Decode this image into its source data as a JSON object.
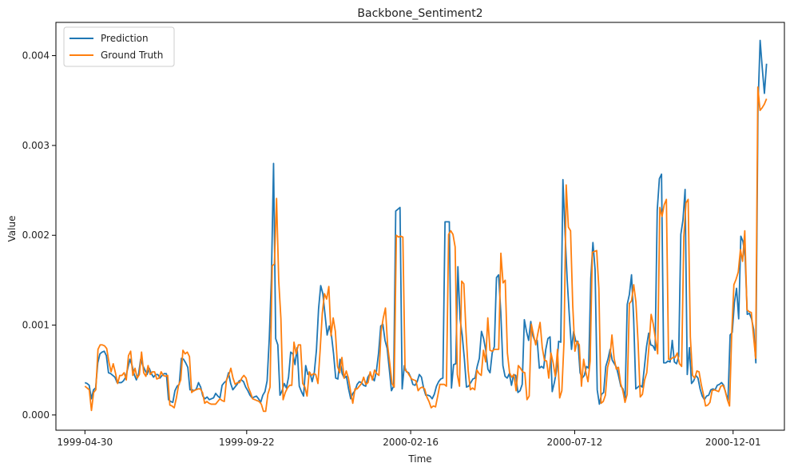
{
  "chart_data": {
    "type": "line",
    "title": "Backbone_Sentiment2",
    "xlabel": "Time",
    "ylabel": "Value",
    "x_start": "1999-04-30",
    "x_end": "2000-12-31",
    "xlim": [
      "1999-04-04",
      "2001-01-16"
    ],
    "ylim": [
      -0.00017,
      0.00437
    ],
    "x_ticks": [
      "1999-04-30",
      "1999-09-22",
      "2000-02-16",
      "2000-07-12",
      "2000-12-01"
    ],
    "y_ticks": [
      0.0,
      0.001,
      0.002,
      0.003,
      0.004
    ],
    "y_tick_labels": [
      "0.000",
      "0.001",
      "0.002",
      "0.003",
      "0.004"
    ],
    "legend": {
      "position": "top-left",
      "entries": [
        "Prediction",
        "Ground Truth"
      ]
    },
    "grid": false,
    "series": [
      {
        "name": "Prediction",
        "color": "#1f77b4",
        "values": [
          0.00036,
          0.00035,
          0.00033,
          0.00018,
          0.00028,
          0.0003,
          0.00058,
          0.00068,
          0.0007,
          0.00071,
          0.00066,
          0.00047,
          0.00046,
          0.00044,
          0.00042,
          0.00036,
          0.00036,
          0.00036,
          0.00038,
          0.00042,
          0.00052,
          0.00062,
          0.00055,
          0.00045,
          0.00039,
          0.00045,
          0.00062,
          0.00055,
          0.0005,
          0.00045,
          0.00052,
          0.00046,
          0.00042,
          0.00045,
          0.00045,
          0.00041,
          0.00044,
          0.00046,
          0.00046,
          0.00017,
          0.00015,
          0.00014,
          0.00027,
          0.00032,
          0.00034,
          0.00063,
          0.00062,
          0.00058,
          0.00053,
          0.00028,
          0.00028,
          0.00027,
          0.00029,
          0.00036,
          0.00031,
          0.00021,
          0.00018,
          0.0002,
          0.00017,
          0.00018,
          0.00019,
          0.00024,
          0.00021,
          0.00019,
          0.00033,
          0.00036,
          0.00038,
          0.00047,
          0.00035,
          0.00028,
          0.00031,
          0.00034,
          0.00038,
          0.00039,
          0.00037,
          0.00031,
          0.00027,
          0.00022,
          0.00019,
          0.0002,
          0.00021,
          0.00018,
          0.00014,
          0.00022,
          0.00026,
          0.00038,
          0.00085,
          0.00152,
          0.0028,
          0.00085,
          0.00078,
          0.00022,
          0.00027,
          0.00035,
          0.0003,
          0.00042,
          0.0007,
          0.00068,
          0.00056,
          0.00075,
          0.00032,
          0.00026,
          0.00021,
          0.00055,
          0.00045,
          0.00047,
          0.00037,
          0.00047,
          0.00072,
          0.00118,
          0.00144,
          0.00135,
          0.00112,
          0.00089,
          0.00099,
          0.00089,
          0.00068,
          0.00041,
          0.0004,
          0.00062,
          0.00046,
          0.00041,
          0.00043,
          0.00029,
          0.00018,
          0.00024,
          0.00027,
          0.00034,
          0.00037,
          0.00036,
          0.00033,
          0.00032,
          0.00042,
          0.00046,
          0.00042,
          0.00038,
          0.00049,
          0.00069,
          0.00099,
          0.00101,
          0.00083,
          0.00074,
          0.00051,
          0.00027,
          0.00032,
          0.00227,
          0.00229,
          0.00231,
          0.00029,
          0.00055,
          0.00048,
          0.00047,
          0.00042,
          0.00034,
          0.00033,
          0.00037,
          0.00045,
          0.00042,
          0.0003,
          0.00022,
          0.00022,
          0.00021,
          0.00018,
          0.00023,
          0.00032,
          0.00037,
          0.0004,
          0.00041,
          0.00215,
          0.00215,
          0.00215,
          0.0003,
          0.00056,
          0.00057,
          0.00165,
          0.00107,
          0.00089,
          0.00063,
          0.00031,
          0.00032,
          0.00036,
          0.0004,
          0.00041,
          0.00054,
          0.00063,
          0.00093,
          0.00085,
          0.00072,
          0.00051,
          0.00047,
          0.00069,
          0.00076,
          0.00153,
          0.00156,
          0.00115,
          0.00055,
          0.00043,
          0.00041,
          0.00046,
          0.00033,
          0.00045,
          0.00044,
          0.00025,
          0.00027,
          0.00034,
          0.00106,
          0.00093,
          0.00083,
          0.00104,
          0.00088,
          0.00082,
          0.00083,
          0.00052,
          0.00054,
          0.00052,
          0.00073,
          0.00085,
          0.00087,
          0.00026,
          0.00036,
          0.00049,
          0.00082,
          0.00081,
          0.00262,
          0.00202,
          0.0015,
          0.0011,
          0.00073,
          0.00093,
          0.00082,
          0.00082,
          0.00047,
          0.00041,
          0.00044,
          0.00054,
          0.00052,
          0.00152,
          0.00192,
          0.00162,
          0.00028,
          0.00012,
          0.00023,
          0.00025,
          0.00054,
          0.00062,
          0.00073,
          0.00061,
          0.00057,
          0.00053,
          0.00043,
          0.00032,
          0.00029,
          0.00019,
          0.00123,
          0.00134,
          0.00156,
          0.00107,
          0.00029,
          0.00031,
          0.00033,
          0.00031,
          0.00053,
          0.00076,
          0.00091,
          0.00078,
          0.00077,
          0.00072,
          0.00228,
          0.00263,
          0.00268,
          0.00058,
          0.00058,
          0.0006,
          0.00059,
          0.00083,
          0.00059,
          0.00057,
          0.00065,
          0.00201,
          0.00217,
          0.00251,
          0.00045,
          0.00075,
          0.00035,
          0.00038,
          0.00044,
          0.00041,
          0.00029,
          0.00021,
          0.00017,
          0.00021,
          0.00022,
          0.00028,
          0.00029,
          0.00028,
          0.00033,
          0.00034,
          0.00036,
          0.00033,
          0.00024,
          0.00016,
          0.00089,
          0.00092,
          0.00125,
          0.00141,
          0.00107,
          0.00199,
          0.00193,
          0.00176,
          0.00112,
          0.00113,
          0.00107,
          0.00095,
          0.00058,
          0.00343,
          0.00417,
          0.00386,
          0.00358,
          0.00391
        ]
      },
      {
        "name": "Ground Truth",
        "color": "#ff7f0e",
        "values": [
          0.00032,
          0.0003,
          0.00028,
          5e-05,
          0.00025,
          0.00028,
          0.00073,
          0.00078,
          0.00078,
          0.00077,
          0.00074,
          0.00059,
          0.00048,
          0.00057,
          0.00047,
          0.00035,
          0.00044,
          0.00044,
          0.00047,
          0.00039,
          0.00066,
          0.00071,
          0.00044,
          0.00052,
          0.00041,
          0.00045,
          0.0007,
          0.00047,
          0.00043,
          0.00055,
          0.00045,
          0.00048,
          0.00048,
          0.0004,
          0.00041,
          0.00048,
          0.00044,
          0.00043,
          0.00044,
          0.00011,
          0.0001,
          8e-05,
          0.00019,
          0.00033,
          0.00039,
          0.00072,
          0.00068,
          0.0007,
          0.00065,
          0.00025,
          0.00027,
          0.00028,
          0.00029,
          0.00029,
          0.00025,
          0.00013,
          0.00015,
          0.00013,
          0.00012,
          0.00012,
          0.00012,
          0.00015,
          0.00018,
          0.00016,
          0.00015,
          0.00039,
          0.00044,
          0.00052,
          0.00041,
          0.00034,
          0.00036,
          0.00036,
          0.00041,
          0.00044,
          0.00041,
          0.00031,
          0.00025,
          0.00018,
          0.00017,
          0.00016,
          0.00015,
          0.00012,
          4e-05,
          4e-05,
          0.00023,
          0.00031,
          0.00166,
          0.00168,
          0.00241,
          0.00149,
          0.00107,
          0.00017,
          0.00025,
          0.0003,
          0.00033,
          0.00033,
          0.00081,
          0.00068,
          0.00078,
          0.00078,
          0.00035,
          0.00031,
          0.00021,
          0.00048,
          0.00044,
          0.00046,
          0.00045,
          0.00035,
          0.00072,
          0.00113,
          0.00135,
          0.00129,
          0.00143,
          0.00088,
          0.00108,
          0.00093,
          0.00054,
          0.00047,
          0.00064,
          0.00041,
          0.00049,
          0.00041,
          0.00026,
          0.00013,
          0.00029,
          0.00029,
          0.00032,
          0.00035,
          0.00042,
          0.00034,
          0.00036,
          0.00048,
          0.00039,
          0.0005,
          0.00046,
          0.00044,
          0.00093,
          0.00108,
          0.00119,
          0.00077,
          0.00057,
          0.00035,
          0.00031,
          0.002,
          0.00198,
          0.00199,
          0.00198,
          0.0005,
          0.00048,
          0.00044,
          0.0004,
          0.00039,
          0.00038,
          0.00027,
          0.0003,
          0.00031,
          0.00029,
          0.0002,
          0.00015,
          8e-05,
          0.0001,
          9e-05,
          0.00021,
          0.00034,
          0.00034,
          0.00034,
          0.00032,
          0.00201,
          0.00205,
          0.00201,
          0.00187,
          0.00045,
          0.00032,
          0.00149,
          0.00146,
          0.00092,
          0.00049,
          0.00028,
          0.0003,
          0.00028,
          0.0005,
          0.00046,
          0.00044,
          0.00072,
          0.00059,
          0.00108,
          0.00072,
          0.00071,
          0.00073,
          0.00073,
          0.00073,
          0.0018,
          0.00147,
          0.0015,
          0.00069,
          0.00047,
          0.00042,
          0.00045,
          0.00027,
          0.00055,
          0.00052,
          0.00048,
          0.00047,
          0.00017,
          0.00021,
          0.00101,
          0.00089,
          0.00078,
          0.00091,
          0.00103,
          0.00075,
          0.00061,
          0.0006,
          0.00041,
          0.00069,
          0.00058,
          0.00043,
          0.00073,
          0.00019,
          0.00027,
          0.00082,
          0.00256,
          0.00209,
          0.00205,
          0.00122,
          0.00071,
          0.00082,
          0.00078,
          0.00032,
          0.00062,
          0.00048,
          0.00037,
          0.0006,
          0.00181,
          0.00182,
          0.00183,
          0.00141,
          0.00013,
          0.00015,
          0.00022,
          0.00053,
          0.00062,
          0.00089,
          0.00063,
          0.00051,
          0.00053,
          0.00035,
          0.00027,
          0.00014,
          0.00023,
          0.00124,
          0.00127,
          0.00145,
          0.00126,
          0.00081,
          0.0002,
          0.00023,
          0.00039,
          0.00047,
          0.00076,
          0.00112,
          0.00101,
          0.00084,
          0.00068,
          0.00231,
          0.00221,
          0.00234,
          0.0024,
          0.00062,
          0.00062,
          0.00064,
          0.00064,
          0.00069,
          0.00057,
          0.00054,
          0.00198,
          0.00236,
          0.0024,
          0.00087,
          0.00044,
          0.00041,
          0.00049,
          0.00048,
          0.00034,
          0.00023,
          0.0001,
          0.00011,
          0.00014,
          0.00027,
          0.00028,
          0.00027,
          0.00026,
          0.00032,
          0.00033,
          0.00027,
          0.00017,
          0.0001,
          0.0009,
          0.00145,
          0.00151,
          0.00159,
          0.00184,
          0.00171,
          0.00205,
          0.00117,
          0.00115,
          0.00114,
          0.00088,
          0.00063,
          0.00365,
          0.00339,
          0.00342,
          0.00346,
          0.00352
        ]
      }
    ]
  }
}
